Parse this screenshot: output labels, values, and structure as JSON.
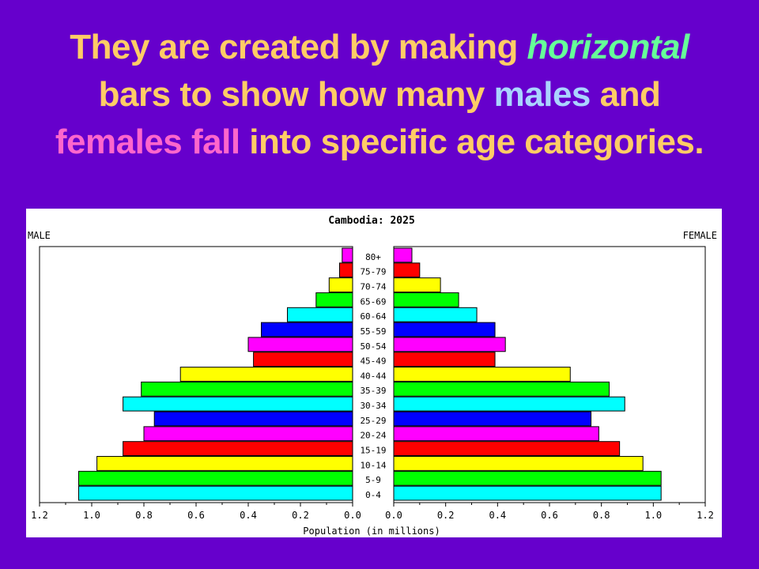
{
  "heading": {
    "line1_pre": "They are created by making ",
    "line1_em": "horizontal",
    "line2_pre": "bars to show how many ",
    "line2_males": "males",
    "line2_post": " and",
    "line3_females": "females fall",
    "line3_post": " into specific age categories."
  },
  "chart_data": {
    "type": "bar",
    "orientation": "horizontal",
    "title": "Cambodia: 2025",
    "left_label": "MALE",
    "right_label": "FEMALE",
    "xlabel": "Population (in millions)",
    "xlim": [
      0,
      1.2
    ],
    "xticks": [
      "1.2",
      "1.0",
      "0.8",
      "0.6",
      "0.4",
      "0.2",
      "0.0",
      "0.0",
      "0.2",
      "0.4",
      "0.6",
      "0.8",
      "1.0",
      "1.2"
    ],
    "categories": [
      "0-4",
      "5-9",
      "10-14",
      "15-19",
      "20-24",
      "25-29",
      "30-34",
      "35-39",
      "40-44",
      "45-49",
      "50-54",
      "55-59",
      "60-64",
      "65-69",
      "70-74",
      "75-79",
      "80+"
    ],
    "series": [
      {
        "name": "MALE",
        "values": [
          1.05,
          1.05,
          0.98,
          0.88,
          0.8,
          0.76,
          0.88,
          0.81,
          0.66,
          0.38,
          0.4,
          0.35,
          0.25,
          0.14,
          0.09,
          0.05,
          0.04
        ]
      },
      {
        "name": "FEMALE",
        "values": [
          1.03,
          1.03,
          0.96,
          0.87,
          0.79,
          0.76,
          0.89,
          0.83,
          0.68,
          0.39,
          0.43,
          0.39,
          0.32,
          0.25,
          0.18,
          0.1,
          0.07
        ]
      }
    ],
    "bar_colors": [
      "#00ffff",
      "#00ff00",
      "#ffff00",
      "#ff0000",
      "#ff00ff",
      "#0000ff",
      "#00ffff",
      "#00ff00",
      "#ffff00",
      "#ff0000",
      "#ff00ff",
      "#0000ff",
      "#00ffff",
      "#00ff00",
      "#ffff00",
      "#ff0000",
      "#ff00ff"
    ],
    "grid": false,
    "legend": "none"
  }
}
